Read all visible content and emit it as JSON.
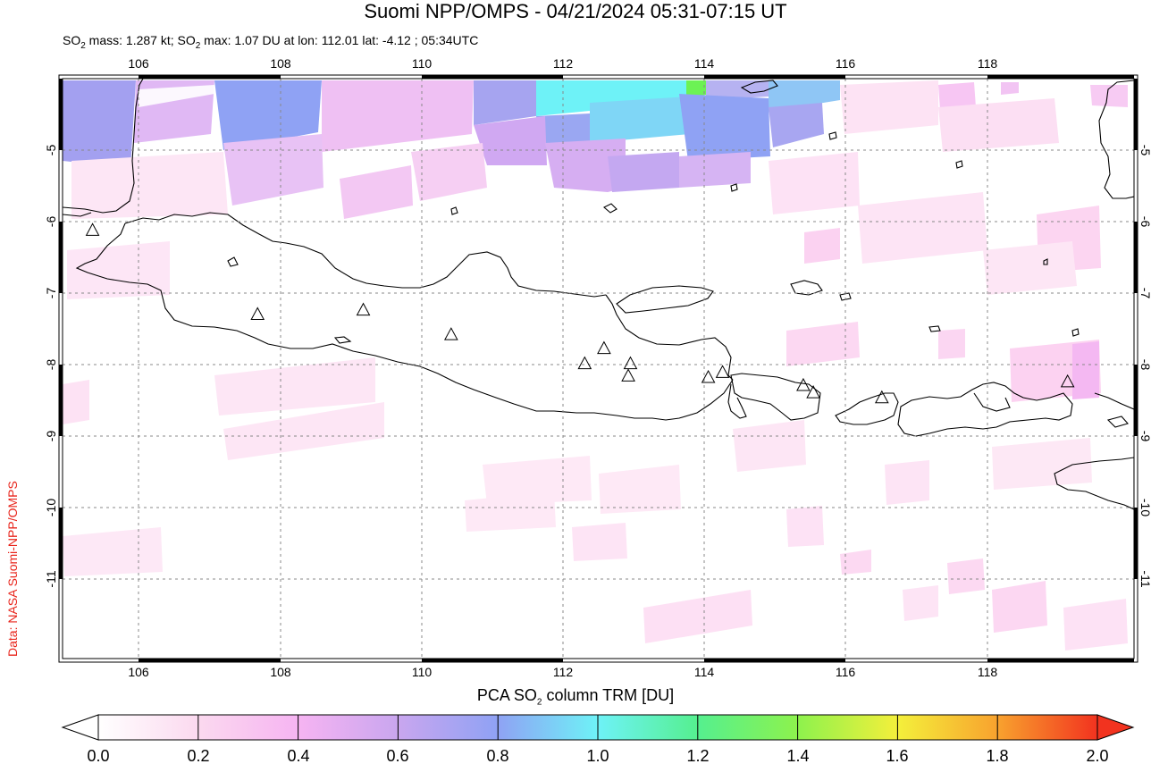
{
  "title": "Suomi NPP/OMPS - 04/21/2024 05:31-07:15 UT",
  "subtitle": {
    "part1": "SO",
    "sub1": "2",
    "part2": " mass: 1.287 kt; SO",
    "sub2": "2",
    "part3": " max: 1.07 DU at lon: 112.01 lat: -4.12 ; 05:34UTC"
  },
  "credit": "Data: NASA Suomi-NPP/OMPS",
  "map": {
    "lon_ticks": [
      "106",
      "108",
      "110",
      "112",
      "114",
      "116",
      "118"
    ],
    "lat_ticks": [
      "-5",
      "-6",
      "-7",
      "-8",
      "-9",
      "-10",
      "-11"
    ],
    "lon_range": [
      105.0,
      120.0
    ],
    "lat_range": [
      -4.0,
      -12.0
    ],
    "volcano_markers": [
      {
        "lon": 105.42,
        "lat": -6.1
      },
      {
        "lon": 107.73,
        "lat": -7.26
      },
      {
        "lon": 109.21,
        "lat": -7.2
      },
      {
        "lon": 110.44,
        "lat": -7.54
      },
      {
        "lon": 112.31,
        "lat": -7.94
      },
      {
        "lon": 112.58,
        "lat": -7.73
      },
      {
        "lon": 112.95,
        "lat": -7.94
      },
      {
        "lon": 112.92,
        "lat": -8.11
      },
      {
        "lon": 114.04,
        "lat": -8.13
      },
      {
        "lon": 114.24,
        "lat": -8.06
      },
      {
        "lon": 115.37,
        "lat": -8.24
      },
      {
        "lon": 115.51,
        "lat": -8.34
      },
      {
        "lon": 116.47,
        "lat": -8.41
      },
      {
        "lon": 119.07,
        "lat": -8.19
      }
    ]
  },
  "colorbar": {
    "title_part1": "PCA SO",
    "title_sub": "2",
    "title_part2": " column TRM [DU]",
    "ticks": [
      "0.0",
      "0.2",
      "0.4",
      "0.6",
      "0.8",
      "1.0",
      "1.2",
      "1.4",
      "1.6",
      "1.8",
      "2.0"
    ],
    "range": [
      0.0,
      2.0
    ]
  }
}
